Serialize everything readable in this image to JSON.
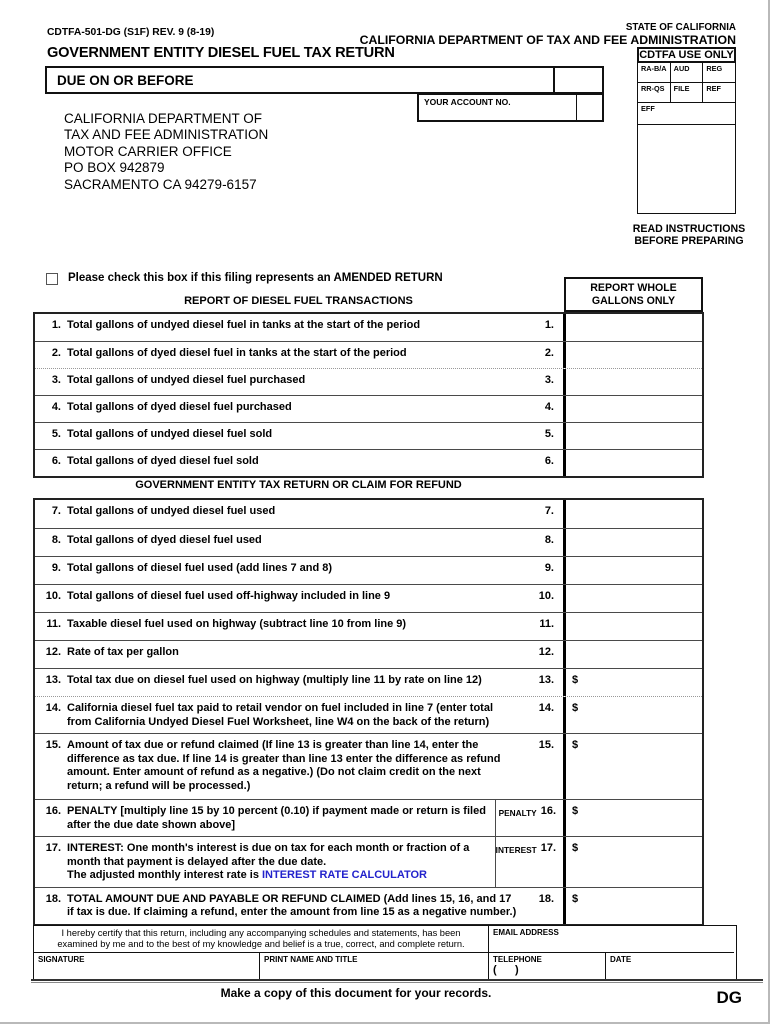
{
  "header": {
    "form_number": "CDTFA-501-DG (S1F) REV. 9 (8-19)",
    "state": "STATE OF CALIFORNIA",
    "department": "CALIFORNIA DEPARTMENT OF TAX AND FEE ADMINISTRATION",
    "title": "GOVERNMENT ENTITY DIESEL FUEL TAX RETURN",
    "due_label": "DUE ON OR BEFORE",
    "account_label": "YOUR ACCOUNT NO.",
    "address_lines": [
      "CALIFORNIA DEPARTMENT OF",
      "TAX AND FEE ADMINISTRATION",
      "MOTOR CARRIER OFFICE",
      "PO BOX 942879",
      "SACRAMENTO CA 94279-6157"
    ],
    "use_only": {
      "title": "CDTFA USE ONLY",
      "row1": [
        "RA-B/A",
        "AUD",
        "REG"
      ],
      "row2": [
        "RR-QS",
        "FILE",
        "REF"
      ],
      "eff": "EFF"
    },
    "read_instructions_line1": "READ INSTRUCTIONS",
    "read_instructions_line2": "BEFORE PREPARING"
  },
  "amended": {
    "text": "Please check this box if this filing represents an AMENDED RETURN"
  },
  "table1_header": "REPORT OF DIESEL FUEL TRANSACTIONS",
  "gallons_col_header_line1": "REPORT WHOLE",
  "gallons_col_header_line2": "GALLONS ONLY",
  "section2_header": "GOVERNMENT ENTITY TAX RETURN OR CLAIM FOR REFUND",
  "currency_symbol": "$",
  "table1_rows": [
    {
      "num": "1.",
      "text": "Total gallons of undyed diesel fuel in tanks at the start of the period"
    },
    {
      "num": "2.",
      "text": "Total gallons of dyed diesel fuel in tanks at the start of the period"
    },
    {
      "num": "3.",
      "text": "Total gallons of undyed diesel fuel purchased"
    },
    {
      "num": "4.",
      "text": "Total gallons of dyed diesel fuel purchased"
    },
    {
      "num": "5.",
      "text": "Total gallons of undyed diesel fuel sold"
    },
    {
      "num": "6.",
      "text": "Total gallons of dyed diesel fuel sold"
    }
  ],
  "table2_rows": [
    {
      "num": "7.",
      "text": "Total gallons of undyed diesel fuel used"
    },
    {
      "num": "8.",
      "text": "Total gallons of dyed diesel fuel used"
    },
    {
      "num": "9.",
      "text": "Total gallons of diesel fuel used (add lines 7 and 8)"
    },
    {
      "num": "10.",
      "text": "Total gallons of diesel fuel used off-highway included in line 9"
    },
    {
      "num": "11.",
      "text": "Taxable diesel fuel used on highway (subtract line 10 from line 9)"
    },
    {
      "num": "12.",
      "text": "Rate of tax per gallon"
    },
    {
      "num": "13.",
      "text": "Total tax due on diesel fuel used on highway (multiply line 11 by rate on line 12)",
      "dollar": true
    },
    {
      "num": "14.",
      "text": "California diesel fuel tax paid to retail vendor on fuel included in line 7 (enter total from California Undyed Diesel Fuel Worksheet, line W4 on the back of the return)",
      "dollar": true
    },
    {
      "num": "15.",
      "text": "Amount of tax due or refund claimed (If line 13 is greater than line 14, enter the difference as tax due. If line 14 is greater than line 13 enter the difference as refund amount. Enter amount of refund as a negative.) (Do not claim credit on the next return; a refund will be processed.)",
      "dollar": true
    },
    {
      "num": "16.",
      "sub_label": "PENALTY",
      "text": "PENALTY [multiply line 15 by 10 percent (0.10) if payment made or return is filed after the due date shown above]",
      "dollar": true
    },
    {
      "num": "17.",
      "sub_label": "INTEREST",
      "text": "INTEREST: One month's interest is due on tax for each month or fraction of a month that payment is delayed after the due date.",
      "text2": "The adjusted monthly interest rate is ",
      "link": "INTEREST RATE CALCULATOR",
      "dollar": true
    },
    {
      "num": "18.",
      "text": "TOTAL AMOUNT DUE AND PAYABLE OR REFUND CLAIMED (Add lines 15, 16, and 17 if tax is due. If claiming a refund, enter the amount from line 15 as a negative number.)",
      "dollar": true
    }
  ],
  "footer": {
    "certify_text": "I hereby certify that this return, including any accompanying schedules and statements, has been examined by me and to the best of my knowledge and belief is a true, correct, and complete return.",
    "email_label": "EMAIL ADDRESS",
    "signature_label": "SIGNATURE",
    "print_name_label": "PRINT NAME AND TITLE",
    "telephone_label": "TELEPHONE",
    "telephone_value": "(      )",
    "date_label": "DATE",
    "copy_note": "Make a copy of this document for your records.",
    "corner_code": "DG"
  },
  "colors": {
    "link_blue": "#2222cc",
    "border_black": "#000000"
  }
}
